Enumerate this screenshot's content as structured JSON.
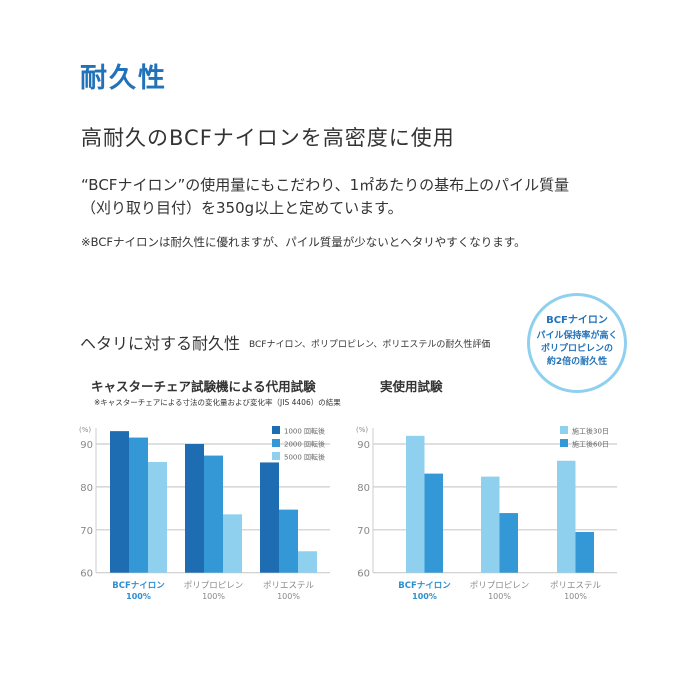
{
  "title": "耐久性",
  "subheading": "高耐久のBCFナイロンを高密度に使用",
  "body_lines": [
    "“BCFナイロン”の使用量にもこだわり、1㎡あたりの基布上のパイル質量",
    "（刈り取り目付）を350g以上と定めています。"
  ],
  "note": "※BCFナイロンは耐久性に優れますが、パイル質量が少ないとヘタリやすくなります。",
  "section": {
    "title": "ヘタリに対する耐久性",
    "subtitle": "BCFナイロン、ポリプロピレン、ポリエステルの耐久性評価"
  },
  "callout": {
    "heading": "BCFナイロン",
    "lines": [
      "パイル保持率が高く",
      "ポリプロピレンの",
      "約2倍の耐久性"
    ]
  },
  "colors": {
    "accent": "#2272b9",
    "dark_blue": "#1e6db3",
    "mid_blue": "#3498d6",
    "light_blue": "#8fd0ef"
  },
  "chart_data": [
    {
      "type": "bar",
      "title": "キャスターチェア試験機による代用試験",
      "subtitle": "※キャスターチェアによる寸法の変化量および変化率（JIS 4406）の結果",
      "ylabel": "(%)",
      "ylim": [
        60,
        95
      ],
      "yticks": [
        60,
        70,
        80,
        90
      ],
      "grid": true,
      "legend": "top-right",
      "categories": [
        [
          "BCFナイロン",
          "100%"
        ],
        [
          "ポリプロピレン",
          "100%"
        ],
        [
          "ポリエステル",
          "100%"
        ]
      ],
      "series": [
        {
          "name": "1000 回転後",
          "color": "#1e6db3",
          "values": [
            93,
            90,
            85.7
          ]
        },
        {
          "name": "2000 回転後",
          "color": "#3498d6",
          "values": [
            91.5,
            87.3,
            74.7
          ]
        },
        {
          "name": "5000 回転後",
          "color": "#8fd0ef",
          "values": [
            85.8,
            73.6,
            65
          ]
        }
      ]
    },
    {
      "type": "bar",
      "title": "実使用試験",
      "ylabel": "(%)",
      "ylim": [
        60,
        95
      ],
      "yticks": [
        60,
        70,
        80,
        90
      ],
      "grid": true,
      "legend": "top-right",
      "categories": [
        [
          "BCFナイロン",
          "100%"
        ],
        [
          "ポリプロピレン",
          "100%"
        ],
        [
          "ポリエステル",
          "100%"
        ]
      ],
      "series": [
        {
          "name": "施工後30日",
          "color": "#8fd0ef",
          "values": [
            91.9,
            82.4,
            86.1
          ]
        },
        {
          "name": "施工後60日",
          "color": "#3498d6",
          "values": [
            83.1,
            73.9,
            69.5
          ]
        }
      ]
    }
  ]
}
